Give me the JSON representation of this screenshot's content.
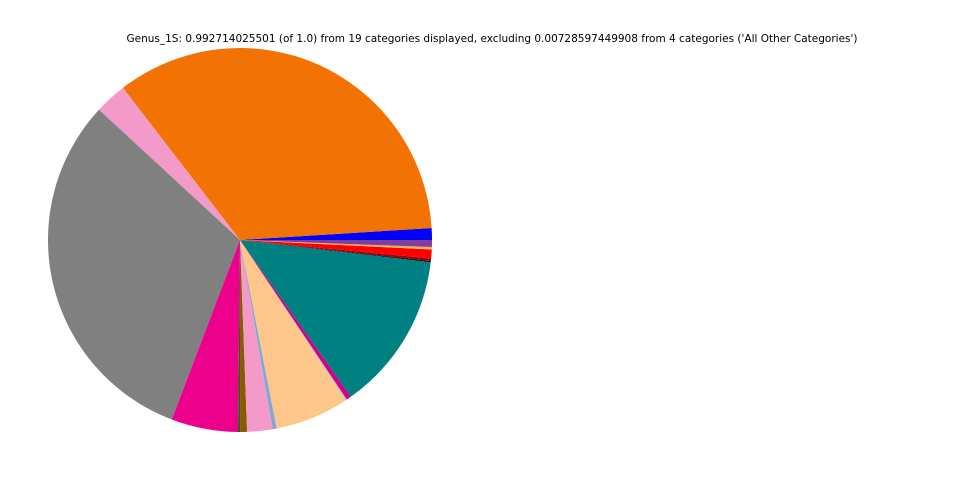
{
  "chart_data": {
    "type": "pie",
    "title": "Genus_1S: 0.992714025501 (of 1.0) from 19 categories displayed, excluding 0.00728597449908 from 4 categories ('All Other Categories')",
    "values": [
      0.0099,
      0.3419,
      0.0267,
      0.3086,
      0.0557,
      0.0017,
      0.0058,
      0.0212,
      0.0033,
      0.0615,
      0.0014,
      0.0041,
      0.1326,
      0.0008,
      0.0022,
      0.0074,
      0.0006,
      0.0014,
      0.0058
    ],
    "colors": [
      "#0000ff",
      "#f27304",
      "#f49ac9",
      "#808080",
      "#ec008c",
      "#2e5b1e",
      "#8b5a00",
      "#f49ac9",
      "#7fa8d9",
      "#fdc68a",
      "#c0c0c0",
      "#d1008a",
      "#008080",
      "#000000",
      "#a0000a",
      "#ff0000",
      "#ffd700",
      "#f4a07a",
      "#7f3f98"
    ]
  }
}
